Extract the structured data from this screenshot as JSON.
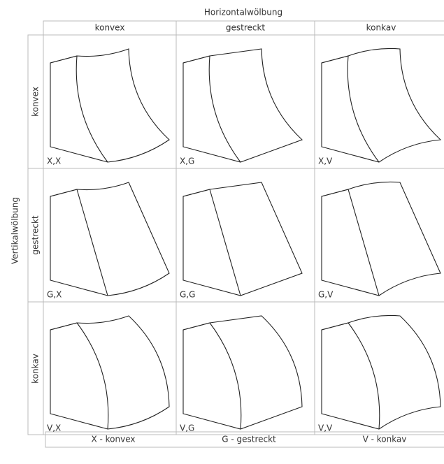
{
  "title": "Horizontalwölbung",
  "side_title": "Vertikalwölbung",
  "columns": [
    "konvex",
    "gestreckt",
    "konkav"
  ],
  "rows": [
    "konvex",
    "gestreckt",
    "konkav"
  ],
  "cells": [
    [
      "X,X",
      "X,G",
      "X,V"
    ],
    [
      "G,X",
      "G,G",
      "G,V"
    ],
    [
      "V,X",
      "V,G",
      "V,V"
    ]
  ],
  "legend": [
    "X - konvex",
    "G - gestreckt",
    "V - konkav"
  ]
}
